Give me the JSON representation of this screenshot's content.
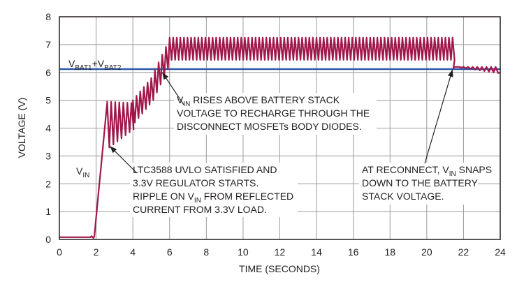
{
  "chart_data": {
    "type": "line",
    "xlabel": "TIME (SECONDS)",
    "ylabel": "VOLTAGE (V)",
    "xlim": [
      0,
      24
    ],
    "ylim": [
      0,
      8
    ],
    "x_ticks": [
      "0",
      "2",
      "4",
      "6",
      "8",
      "10",
      "12",
      "14",
      "16",
      "18",
      "20",
      "22",
      "24"
    ],
    "y_ticks": [
      "0",
      "1",
      "2",
      "3",
      "4",
      "5",
      "6",
      "7",
      "8"
    ],
    "grid": true,
    "colors": {
      "vin": "#a0174a",
      "vbat": "#2e58a6",
      "grid": "#9a9a9a",
      "axis": "#231f20"
    },
    "reference_line": {
      "y": 6.12,
      "label": {
        "main1": "V",
        "sub1": "BAT1",
        "plus": "+V",
        "sub2": "BAT2"
      }
    },
    "series_label": {
      "main": "V",
      "sub": "IN"
    },
    "vin_trace": {
      "x": [
        0,
        1.75,
        2.3,
        2.6,
        3.0,
        4.0,
        4.6,
        5.2,
        5.6,
        5.9,
        6.0,
        21.4,
        21.45,
        24
      ],
      "y": [
        0.1,
        0.1,
        3.4,
        4.2,
        3.6,
        4.2,
        5.0,
        5.6,
        6.3,
        6.6,
        6.8,
        6.8,
        6.15,
        6.05
      ],
      "ripple_bands": [
        {
          "x_start": 2.6,
          "x_end": 4.0,
          "low": 3.3,
          "high": 4.95
        },
        {
          "x_start": 4.0,
          "x_end": 5.0,
          "low": 4.2,
          "high": 5.3
        },
        {
          "x_start": 6.0,
          "x_end": 21.4,
          "low": 6.4,
          "high": 7.25
        },
        {
          "x_start": 21.5,
          "x_end": 24.0,
          "low": 5.95,
          "high": 6.2
        }
      ]
    },
    "annotations": [
      {
        "id": "rises",
        "lines": [
          {
            "a": "V",
            "sub": "IN",
            "b": " RISES ABOVE BATTERY STACK"
          },
          {
            "a": "VOLTAGE TO RECHARGE THROUGH THE",
            "sub": "",
            "b": ""
          },
          {
            "a": "DISCONNECT MOSFETs BODY DIODES.",
            "sub": "",
            "b": ""
          }
        ],
        "arrow_to": {
          "x": 5.6,
          "y": 6.0
        }
      },
      {
        "id": "uvlo",
        "lines": [
          {
            "a": "LTC3588 UVLO SATISFIED AND",
            "sub": "",
            "b": ""
          },
          {
            "a": "3.3V REGULATOR STARTS.",
            "sub": "",
            "b": ""
          },
          {
            "a": "RIPPLE ON V",
            "sub": "IN",
            "b": " FROM REFLECTED"
          },
          {
            "a": "CURRENT FROM 3.3V LOAD.",
            "sub": "",
            "b": ""
          }
        ],
        "arrow_to": {
          "x": 2.75,
          "y": 3.35
        }
      },
      {
        "id": "reconnect",
        "lines": [
          {
            "a": "AT RECONNECT, V",
            "sub": "IN",
            "b": " SNAPS"
          },
          {
            "a": "DOWN TO THE BATTERY",
            "sub": "",
            "b": ""
          },
          {
            "a": "STACK VOLTAGE.",
            "sub": "",
            "b": ""
          }
        ],
        "arrow_to": {
          "x": 21.4,
          "y": 6.1
        }
      }
    ]
  }
}
